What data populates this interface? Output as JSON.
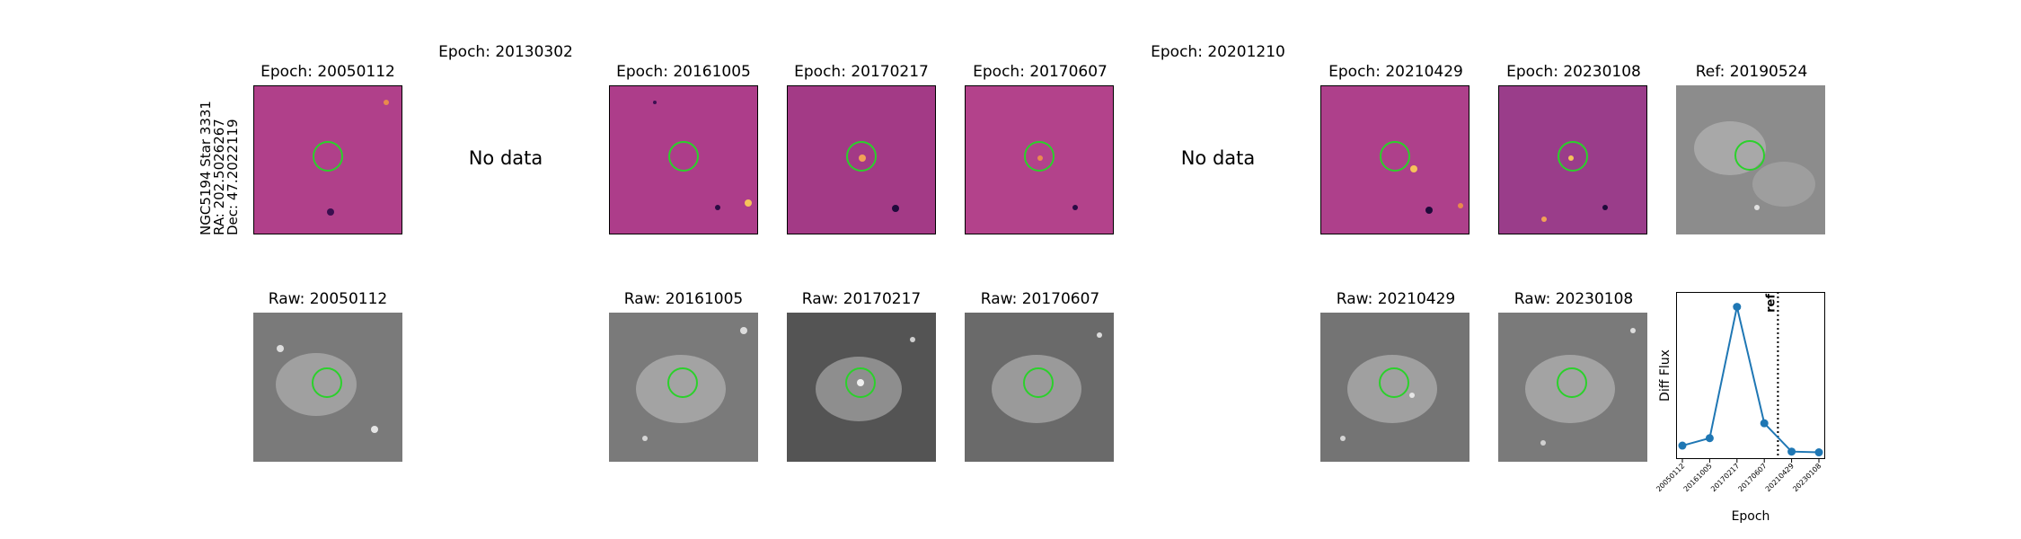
{
  "star": {
    "name": "NGC5194 Star 3331",
    "ra": "RA: 202.5026267",
    "dec": "Dec: 47.2022119"
  },
  "columns": [
    {
      "top_title": "Epoch: 20050112",
      "bottom_title": "Raw: 20050112"
    },
    {
      "top_title": "Epoch: 20130302",
      "no_data": "No data"
    },
    {
      "top_title": "Epoch: 20161005",
      "bottom_title": "Raw: 20161005"
    },
    {
      "top_title": "Epoch: 20170217",
      "bottom_title": "Raw: 20170217"
    },
    {
      "top_title": "Epoch: 20170607",
      "bottom_title": "Raw: 20170607"
    },
    {
      "top_title": "Epoch: 20201210",
      "no_data": "No data"
    },
    {
      "top_title": "Epoch: 20210429",
      "bottom_title": "Raw: 20210429"
    },
    {
      "top_title": "Epoch: 20230108",
      "bottom_title": "Raw: 20230108"
    },
    {
      "top_title": "Ref: 20190524"
    }
  ],
  "colors": {
    "marker_circle": "#2bd12b",
    "line": "#1f77b4"
  },
  "chart_data": {
    "type": "line",
    "categories": [
      "20050112",
      "20161005",
      "20170217",
      "20170607",
      "20210429",
      "20230108"
    ],
    "values": [
      0.07,
      0.12,
      1.0,
      0.22,
      0.03,
      0.025
    ],
    "xlabel": "Epoch",
    "ylabel": "Diff Flux",
    "reference_line": {
      "label": "ref",
      "between": [
        "20170607",
        "20210429"
      ],
      "style": "dotted"
    },
    "ylim": [
      -0.02,
      1.1
    ],
    "grid": false
  }
}
